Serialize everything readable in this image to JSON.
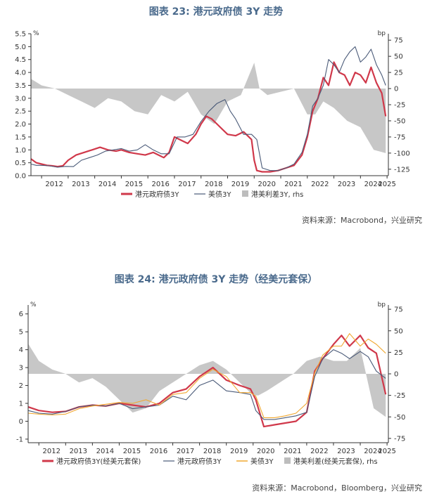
{
  "charts": [
    {
      "title": "图表 23: 港元政府债 3Y 走势",
      "source": "资料来源：Macrobond，兴业研究",
      "legend": "港元政府债3Y  — 美债3Y  ■ 港美利差3Y, rhs"
    },
    {
      "title": "图表 24: 港元政府债 3Y 走势（经美元套保）",
      "source": "资料来源：Macrobond，Bloomberg，兴业研究",
      "legend": "港元政府债3Y(经美元套保)  — 港元政府债3Y  — 美债3Y  ■ 港美利差(经美元套保), rhs"
    }
  ],
  "chart_data": [
    {
      "type": "line",
      "title": "图表 23: 港元政府债 3Y 走势",
      "left_unit": "%",
      "right_unit": "bp",
      "x_ticks": [
        "2012",
        "2013",
        "2014",
        "2015",
        "2016",
        "2017",
        "2018",
        "2019",
        "2020",
        "2021",
        "2022",
        "2023",
        "2024",
        "2025"
      ],
      "xlim": [
        2011.6,
        2025.05
      ],
      "ylim_left": [
        0.0,
        5.5
      ],
      "y_ticks_left": [
        "0.0",
        "0.5",
        "1.0",
        "1.5",
        "2.0",
        "2.5",
        "3.0",
        "3.5",
        "4.0",
        "4.5",
        "5.0",
        "5.5"
      ],
      "ylim_right": [
        -135,
        85
      ],
      "y_ticks_right": [
        "75",
        "50",
        "25",
        "0",
        "-25",
        "-50",
        "-75",
        "-100",
        "-125"
      ],
      "grid": false,
      "legend_position": "bottom",
      "series": [
        {
          "name": "港元政府债3Y",
          "axis": "left",
          "color": "#d0384a",
          "x": [
            2011.6,
            2011.8,
            2012.0,
            2012.2,
            2012.4,
            2012.6,
            2012.8,
            2013.0,
            2013.3,
            2013.6,
            2013.9,
            2014.2,
            2014.5,
            2014.8,
            2015.0,
            2015.3,
            2015.6,
            2015.9,
            2016.2,
            2016.4,
            2016.6,
            2016.8,
            2017.0,
            2017.2,
            2017.5,
            2017.8,
            2018.0,
            2018.2,
            2018.4,
            2018.6,
            2018.8,
            2019.0,
            2019.3,
            2019.6,
            2019.9,
            2020.0,
            2020.1,
            2020.3,
            2020.6,
            2020.9,
            2021.2,
            2021.5,
            2021.8,
            2022.0,
            2022.2,
            2022.4,
            2022.6,
            2022.8,
            2023.0,
            2023.2,
            2023.4,
            2023.6,
            2023.8,
            2024.0,
            2024.2,
            2024.4,
            2024.6,
            2024.8,
            2024.95
          ],
          "y": [
            0.65,
            0.5,
            0.45,
            0.4,
            0.38,
            0.35,
            0.38,
            0.6,
            0.8,
            0.9,
            1.0,
            1.1,
            1.0,
            0.95,
            1.0,
            0.9,
            0.85,
            0.8,
            0.9,
            0.8,
            0.7,
            0.9,
            1.5,
            1.4,
            1.25,
            1.6,
            2.0,
            2.3,
            2.2,
            2.0,
            1.8,
            1.6,
            1.55,
            1.7,
            1.4,
            0.6,
            0.2,
            0.15,
            0.15,
            0.2,
            0.3,
            0.4,
            0.8,
            1.5,
            2.5,
            3.0,
            3.8,
            3.5,
            4.4,
            4.0,
            3.9,
            3.5,
            4.0,
            3.9,
            3.6,
            4.2,
            3.6,
            3.2,
            2.3
          ]
        },
        {
          "name": "美债3Y",
          "axis": "left",
          "color": "#4a5a78",
          "x": [
            2011.6,
            2011.8,
            2012.0,
            2012.3,
            2012.6,
            2012.9,
            2013.2,
            2013.5,
            2013.8,
            2014.1,
            2014.4,
            2014.7,
            2015.0,
            2015.3,
            2015.6,
            2015.9,
            2016.2,
            2016.5,
            2016.8,
            2017.1,
            2017.4,
            2017.7,
            2018.0,
            2018.3,
            2018.6,
            2018.9,
            2019.1,
            2019.3,
            2019.6,
            2019.9,
            2020.1,
            2020.3,
            2020.6,
            2020.9,
            2021.2,
            2021.5,
            2021.8,
            2022.0,
            2022.2,
            2022.4,
            2022.6,
            2022.8,
            2023.0,
            2023.2,
            2023.4,
            2023.6,
            2023.8,
            2024.0,
            2024.2,
            2024.4,
            2024.6,
            2024.8,
            2024.95
          ],
          "y": [
            0.45,
            0.4,
            0.4,
            0.38,
            0.33,
            0.36,
            0.35,
            0.6,
            0.7,
            0.8,
            0.95,
            1.0,
            1.05,
            0.95,
            1.0,
            1.2,
            1.0,
            0.85,
            0.85,
            1.5,
            1.5,
            1.6,
            2.1,
            2.5,
            2.8,
            2.95,
            2.5,
            2.2,
            1.6,
            1.6,
            1.4,
            0.3,
            0.2,
            0.2,
            0.3,
            0.45,
            0.9,
            1.6,
            2.7,
            3.0,
            3.5,
            4.5,
            4.3,
            4.0,
            4.5,
            4.8,
            5.0,
            4.4,
            4.6,
            4.9,
            4.3,
            3.9,
            3.5
          ]
        },
        {
          "name": "港美利差3Y",
          "axis": "right",
          "type": "area",
          "color": "#bdbdbd",
          "x": [
            2011.6,
            2011.8,
            2012.0,
            2012.5,
            2013.0,
            2013.5,
            2014.0,
            2014.5,
            2015.0,
            2015.5,
            2016.0,
            2016.5,
            2017.0,
            2017.5,
            2018.0,
            2018.5,
            2019.0,
            2019.5,
            2020.0,
            2020.2,
            2020.5,
            2021.0,
            2021.5,
            2022.0,
            2022.3,
            2022.6,
            2023.0,
            2023.5,
            2024.0,
            2024.5,
            2024.95
          ],
          "y": [
            15,
            10,
            5,
            0,
            -10,
            -20,
            -30,
            -15,
            -20,
            -35,
            -40,
            -10,
            -20,
            -5,
            -40,
            -55,
            -20,
            -10,
            40,
            0,
            -10,
            -5,
            0,
            -40,
            -40,
            -20,
            -30,
            -50,
            -60,
            -95,
            -100
          ]
        }
      ]
    },
    {
      "type": "line",
      "title": "图表 24: 港元政府债 3Y 走势（经美元套保）",
      "left_unit": "%",
      "right_unit": "bp",
      "x_ticks": [
        "2012",
        "2013",
        "2014",
        "2015",
        "2016",
        "2017",
        "2018",
        "2019",
        "2020",
        "2021",
        "2022",
        "2023",
        "2024",
        "2025"
      ],
      "xlim": [
        2011.6,
        2025.05
      ],
      "ylim_left": [
        -1.2,
        6.5
      ],
      "y_ticks_left": [
        "-1",
        "0",
        "1",
        "2",
        "3",
        "4",
        "5",
        "6"
      ],
      "ylim_right": [
        -80,
        80
      ],
      "y_ticks_right": [
        "75",
        "50",
        "25",
        "0",
        "-25",
        "-50",
        "-75"
      ],
      "grid": false,
      "legend_position": "bottom",
      "series": [
        {
          "name": "港元政府债3Y(经美元套保)",
          "axis": "left",
          "color": "#d0384a",
          "x": [
            2011.6,
            2012.0,
            2012.5,
            2013.0,
            2013.5,
            2014.0,
            2014.5,
            2015.0,
            2015.5,
            2016.0,
            2016.5,
            2017.0,
            2017.5,
            2018.0,
            2018.5,
            2019.0,
            2019.5,
            2019.9,
            2020.1,
            2020.4,
            2020.8,
            2021.2,
            2021.6,
            2022.0,
            2022.3,
            2022.6,
            2023.0,
            2023.3,
            2023.6,
            2024.0,
            2024.3,
            2024.6,
            2024.95
          ],
          "y": [
            0.8,
            0.6,
            0.5,
            0.55,
            0.8,
            0.9,
            0.85,
            1.0,
            0.9,
            0.8,
            1.0,
            1.6,
            1.8,
            2.5,
            3.0,
            2.3,
            2.0,
            1.8,
            1.2,
            -0.3,
            -0.2,
            -0.1,
            0.0,
            0.5,
            2.8,
            3.5,
            4.3,
            4.8,
            4.2,
            4.8,
            4.1,
            3.8,
            1.5
          ]
        },
        {
          "name": "港元政府债3Y",
          "axis": "left",
          "color": "#4a5a78",
          "x": [
            2011.6,
            2012.0,
            2012.5,
            2013.0,
            2013.5,
            2014.0,
            2014.5,
            2015.0,
            2015.5,
            2016.0,
            2016.5,
            2017.0,
            2017.5,
            2018.0,
            2018.5,
            2019.0,
            2019.5,
            2019.9,
            2020.1,
            2020.4,
            2020.8,
            2021.2,
            2021.6,
            2022.0,
            2022.3,
            2022.6,
            2023.0,
            2023.3,
            2023.6,
            2024.0,
            2024.3,
            2024.6,
            2024.95
          ],
          "y": [
            0.6,
            0.45,
            0.4,
            0.55,
            0.8,
            0.9,
            0.85,
            1.0,
            0.7,
            0.8,
            0.9,
            1.4,
            1.2,
            2.0,
            2.3,
            1.7,
            1.6,
            1.5,
            0.6,
            0.1,
            0.1,
            0.2,
            0.3,
            0.5,
            2.5,
            3.5,
            4.0,
            3.8,
            3.5,
            3.9,
            3.6,
            2.8,
            2.4
          ]
        },
        {
          "name": "美债3Y",
          "axis": "left",
          "color": "#f0a830",
          "x": [
            2011.6,
            2012.0,
            2012.5,
            2013.0,
            2013.5,
            2014.0,
            2014.5,
            2015.0,
            2015.5,
            2016.0,
            2016.5,
            2017.0,
            2017.5,
            2018.0,
            2018.5,
            2019.0,
            2019.5,
            2019.9,
            2020.1,
            2020.4,
            2020.8,
            2021.2,
            2021.6,
            2022.0,
            2022.3,
            2022.6,
            2023.0,
            2023.3,
            2023.6,
            2024.0,
            2024.3,
            2024.6,
            2024.95
          ],
          "y": [
            0.45,
            0.4,
            0.35,
            0.4,
            0.7,
            0.85,
            0.95,
            1.05,
            1.0,
            1.2,
            0.9,
            1.5,
            1.6,
            2.4,
            2.9,
            2.5,
            1.6,
            1.6,
            1.4,
            0.2,
            0.2,
            0.3,
            0.45,
            1.0,
            2.7,
            3.7,
            4.2,
            4.2,
            4.9,
            4.2,
            4.6,
            4.3,
            3.8
          ]
        },
        {
          "name": "港美利差(经美元套保)",
          "axis": "right",
          "type": "area",
          "color": "#bdbdbd",
          "x": [
            2011.6,
            2012.0,
            2012.5,
            2013.0,
            2013.5,
            2014.0,
            2014.5,
            2015.0,
            2015.5,
            2016.0,
            2016.5,
            2017.0,
            2017.5,
            2018.0,
            2018.5,
            2019.0,
            2019.5,
            2020.0,
            2020.2,
            2020.5,
            2021.0,
            2021.5,
            2022.0,
            2022.5,
            2023.0,
            2023.5,
            2024.0,
            2024.5,
            2024.95
          ],
          "y": [
            35,
            15,
            5,
            0,
            -10,
            -5,
            -15,
            -30,
            -45,
            -40,
            -20,
            -10,
            0,
            10,
            15,
            5,
            -10,
            -25,
            -25,
            -20,
            -10,
            0,
            15,
            20,
            15,
            15,
            30,
            -40,
            -50
          ]
        }
      ]
    }
  ]
}
